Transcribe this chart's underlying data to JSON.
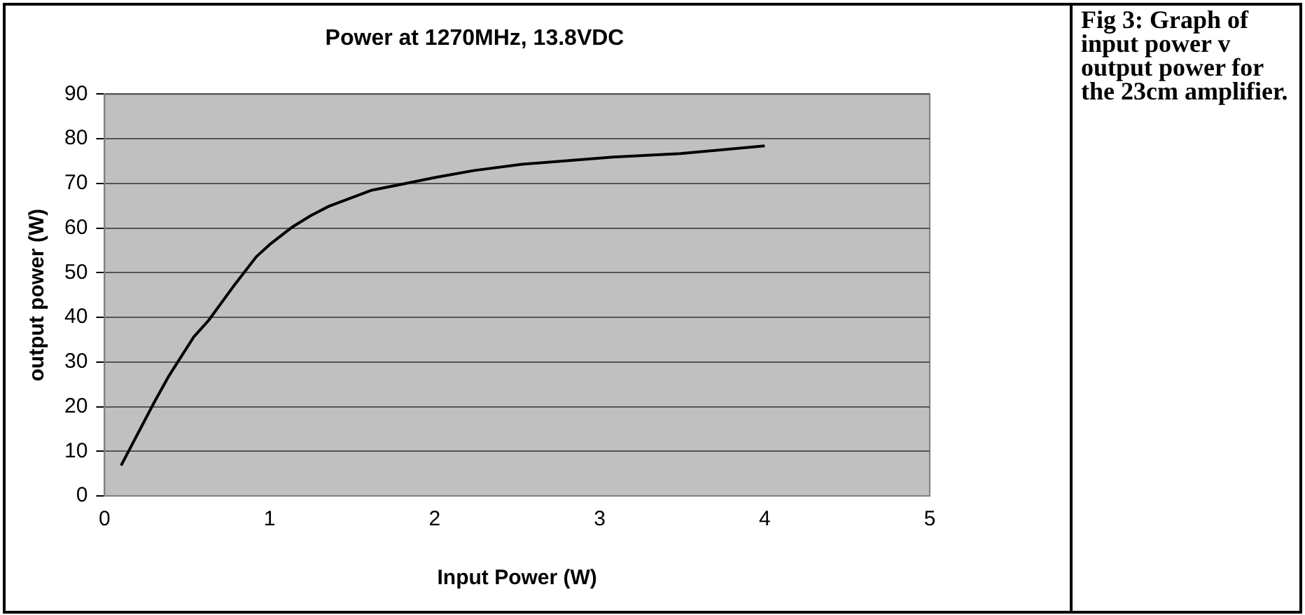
{
  "chart_data": {
    "type": "line",
    "title": "Power at 1270MHz, 13.8VDC",
    "xlabel": "Input Power (W)",
    "ylabel": "output power (W)",
    "annotations": [
      "Fig 3: Graph of input power v output power for the 23cm amplifier."
    ],
    "x": [
      0.1,
      0.3,
      0.39,
      0.54,
      0.63,
      0.78,
      0.92,
      1.0,
      1.14,
      1.25,
      1.36,
      1.62,
      1.77,
      2.0,
      2.24,
      2.53,
      3.08,
      3.49,
      4.0
    ],
    "series": [
      {
        "color": "#000000",
        "values": [
          6.8,
          20.9,
          26.9,
          35.6,
          39.3,
          46.9,
          53.6,
          56.3,
          60.3,
          62.8,
          64.9,
          68.5,
          69.6,
          71.3,
          72.9,
          74.3,
          75.9,
          76.7,
          78.4
        ]
      }
    ],
    "xlim": [
      0,
      5
    ],
    "xticks": [
      0,
      1,
      2,
      3,
      4,
      5
    ],
    "ylim": [
      0,
      90
    ],
    "yticks": [
      0,
      10,
      20,
      30,
      40,
      50,
      60,
      70,
      80,
      90
    ],
    "grid": "y",
    "legend": false,
    "marker": "none",
    "line_style": "solid"
  }
}
